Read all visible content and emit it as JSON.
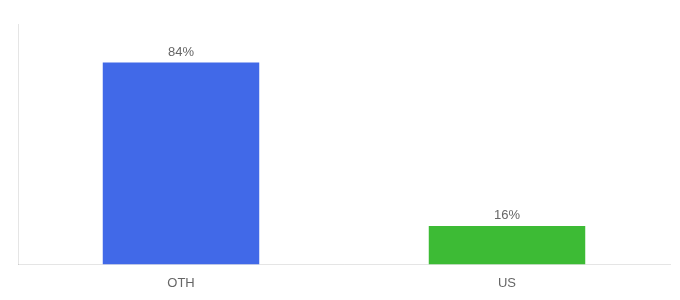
{
  "chart_data": {
    "type": "bar",
    "categories": [
      "OTH",
      "US"
    ],
    "values": [
      84,
      16
    ],
    "value_labels": [
      "84%",
      "16%"
    ],
    "data_labels": true,
    "colors": [
      "#4169e8",
      "#3dbb35"
    ],
    "ylim": [
      0,
      100
    ],
    "tick_labels": "x",
    "grid": false
  }
}
